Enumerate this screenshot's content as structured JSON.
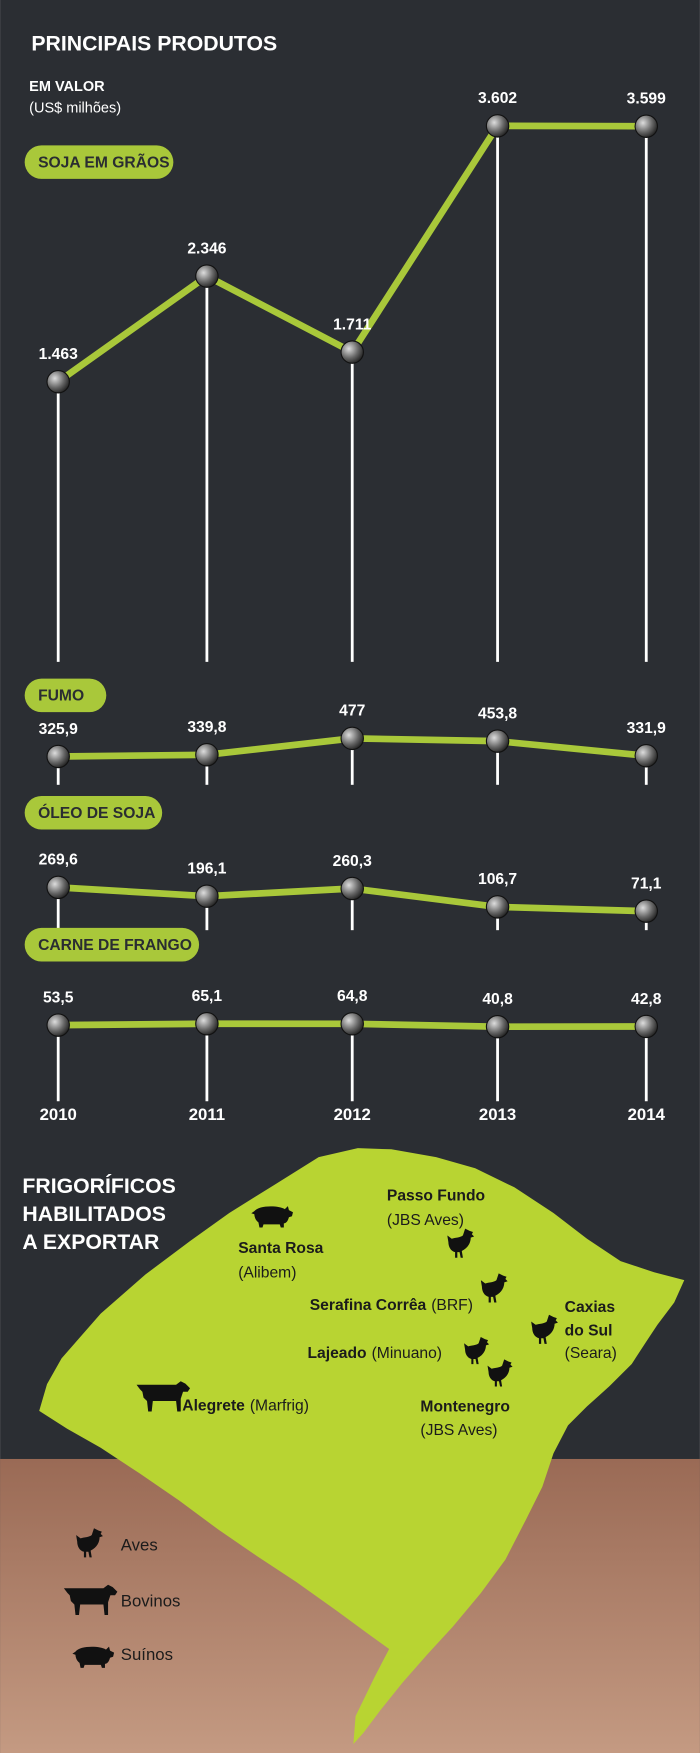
{
  "chart_data": {
    "type": "line",
    "title": "PRINCIPAIS PRODUTOS",
    "subtitle": "EM VALOR",
    "unit": "(US$ milhões)",
    "categories": [
      "2010",
      "2011",
      "2012",
      "2013",
      "2014"
    ],
    "series": [
      {
        "name": "SOJA EM GRÃOS",
        "color": "#a9c83a",
        "values": [
          1463,
          2346,
          1711,
          3602,
          3599
        ],
        "value_labels": [
          "1.463",
          "2.346",
          "1.711",
          "3.602",
          "3.599"
        ],
        "ylim": [
          0,
          4000
        ]
      },
      {
        "name": "FUMO",
        "color": "#a9c83a",
        "values": [
          325.9,
          339.8,
          477,
          453.8,
          331.9
        ],
        "value_labels": [
          "325,9",
          "339,8",
          "477",
          "453,8",
          "331,9"
        ],
        "ylim": [
          0,
          500
        ]
      },
      {
        "name": "ÓLEO DE SOJA",
        "color": "#a9c83a",
        "values": [
          269.6,
          196.1,
          260.3,
          106.7,
          71.1
        ],
        "value_labels": [
          "269,6",
          "196,1",
          "260,3",
          "106,7",
          "71,1"
        ],
        "ylim": [
          0,
          300
        ]
      },
      {
        "name": "CARNE DE FRANGO",
        "color": "#a9c83a",
        "values": [
          53.5,
          65.1,
          64.8,
          40.8,
          42.8
        ],
        "value_labels": [
          "53,5",
          "65,1",
          "64,8",
          "40,8",
          "42,8"
        ],
        "ylim": [
          0,
          100
        ]
      }
    ]
  },
  "map": {
    "title_lines": [
      "FRIGORÍFICOS",
      "HABILITADOS",
      "A EXPORTAR"
    ],
    "cities": [
      {
        "name": [
          "Santa Rosa"
        ],
        "company": "(Alibem)"
      },
      {
        "name": [
          "Passo Fundo"
        ],
        "company": "(JBS Aves)"
      },
      {
        "name": [
          "Serafina Corrêa"
        ],
        "company": "(BRF)"
      },
      {
        "name": [
          "Caxias",
          "do Sul"
        ],
        "company": "(Seara)"
      },
      {
        "name": [
          "Lajeado"
        ],
        "company": "(Minuano)"
      },
      {
        "name": [
          "Montenegro"
        ],
        "company": "(JBS Aves)"
      },
      {
        "name": [
          "Alegrete"
        ],
        "company": "(Marfrig)"
      }
    ],
    "legend": [
      "Aves",
      "Bovinos",
      "Suínos"
    ]
  }
}
